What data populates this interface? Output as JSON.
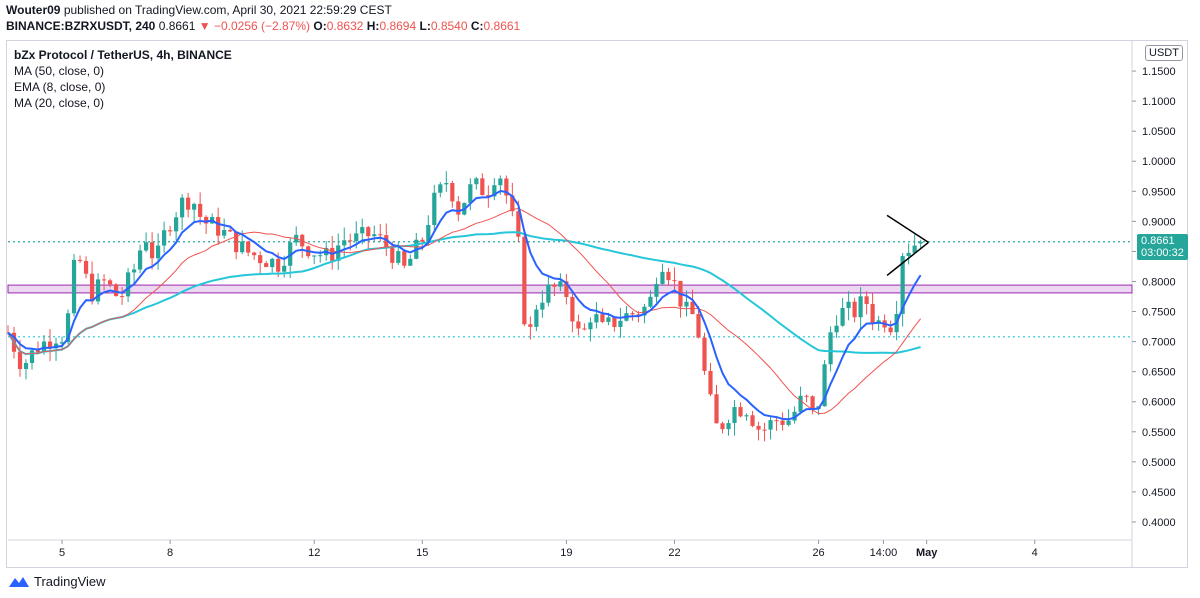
{
  "header": {
    "author": "Wouter09",
    "published": "published on TradingView.com, April 30, 2021 22:59:29 CEST",
    "symbol": "BINANCE:BZRXUSDT, 240",
    "price": "0.8661",
    "change": "▼ −0.0256 (−2.87%)",
    "o_label": "O:",
    "o_value": "0.8632",
    "h_label": "H:",
    "h_value": "0.8694",
    "l_label": "L:",
    "l_value": "0.8540",
    "c_label": "C:",
    "c_value": "0.8661"
  },
  "legend": {
    "title": "bZx Protocol / TetherUS, 4h, BINANCE",
    "ma50": "MA (50, close, 0)",
    "ema8": "EMA (8, close, 0)",
    "ma20": "MA (20, close, 0)"
  },
  "price_tag": {
    "price": "0.8661",
    "countdown": "03:00:32"
  },
  "currency": "USDT",
  "footer": {
    "brand": "TradingView"
  },
  "colors": {
    "up": "#26a69a",
    "down": "#ef5350",
    "ma50": "#26c6da",
    "ema8": "#2962ff",
    "ma20": "#ef5350",
    "zone": "#9c27b0",
    "tag": "#26a69a"
  },
  "chart_data": {
    "type": "candlestick",
    "title": "bZx Protocol / TetherUS, 4h, BINANCE",
    "ylim": [
      0.37,
      1.2
    ],
    "y_ticks": [
      "1.1500",
      "1.1000",
      "1.0500",
      "1.0000",
      "0.9500",
      "0.9000",
      "0.8500",
      "0.8000",
      "0.7500",
      "0.7000",
      "0.6500",
      "0.6000",
      "0.5500",
      "0.5000",
      "0.4500",
      "0.4000"
    ],
    "x_ticks": [
      "5",
      "8",
      "12",
      "15",
      "19",
      "22",
      "26",
      "14:00",
      "May",
      "4"
    ],
    "x_tick_days": [
      5,
      8,
      12,
      15,
      19,
      22,
      26,
      27.8,
      29,
      32
    ],
    "x_start_day": 3.5,
    "x_end_day": 34.7,
    "last_day": 28.95,
    "candles_per_day": 6,
    "close_anchors": [
      [
        3.5,
        0.715
      ],
      [
        3.9,
        0.66
      ],
      [
        4.3,
        0.69
      ],
      [
        4.8,
        0.71
      ],
      [
        5.1,
        0.71
      ],
      [
        5.4,
        0.85
      ],
      [
        5.8,
        0.78
      ],
      [
        6.2,
        0.8
      ],
      [
        6.6,
        0.77
      ],
      [
        7.0,
        0.82
      ],
      [
        7.3,
        0.88
      ],
      [
        7.6,
        0.83
      ],
      [
        7.9,
        0.89
      ],
      [
        8.3,
        0.93
      ],
      [
        8.6,
        0.94
      ],
      [
        8.9,
        0.9
      ],
      [
        9.3,
        0.89
      ],
      [
        9.7,
        0.87
      ],
      [
        10.1,
        0.85
      ],
      [
        10.5,
        0.84
      ],
      [
        11.0,
        0.83
      ],
      [
        11.5,
        0.87
      ],
      [
        12.0,
        0.85
      ],
      [
        12.4,
        0.84
      ],
      [
        12.8,
        0.87
      ],
      [
        13.2,
        0.87
      ],
      [
        13.6,
        0.88
      ],
      [
        14.0,
        0.86
      ],
      [
        14.5,
        0.82
      ],
      [
        15.0,
        0.87
      ],
      [
        15.3,
        0.93
      ],
      [
        15.7,
        0.97
      ],
      [
        16.0,
        0.92
      ],
      [
        16.4,
        0.96
      ],
      [
        16.8,
        0.95
      ],
      [
        17.1,
        0.99
      ],
      [
        17.4,
        0.93
      ],
      [
        17.7,
        0.85
      ],
      [
        17.9,
        0.69
      ],
      [
        18.2,
        0.77
      ],
      [
        18.6,
        0.79
      ],
      [
        19.0,
        0.78
      ],
      [
        19.4,
        0.7
      ],
      [
        19.7,
        0.75
      ],
      [
        20.0,
        0.72
      ],
      [
        20.5,
        0.74
      ],
      [
        21.0,
        0.75
      ],
      [
        21.3,
        0.76
      ],
      [
        21.6,
        0.84
      ],
      [
        21.9,
        0.81
      ],
      [
        22.3,
        0.75
      ],
      [
        22.6,
        0.74
      ],
      [
        22.9,
        0.62
      ],
      [
        23.2,
        0.55
      ],
      [
        23.6,
        0.59
      ],
      [
        24.0,
        0.59
      ],
      [
        24.4,
        0.55
      ],
      [
        24.8,
        0.57
      ],
      [
        25.2,
        0.57
      ],
      [
        25.6,
        0.61
      ],
      [
        25.9,
        0.57
      ],
      [
        26.1,
        0.63
      ],
      [
        26.4,
        0.74
      ],
      [
        26.7,
        0.75
      ],
      [
        27.0,
        0.75
      ],
      [
        27.3,
        0.77
      ],
      [
        27.6,
        0.73
      ],
      [
        27.9,
        0.74
      ],
      [
        28.1,
        0.72
      ],
      [
        28.3,
        0.85
      ],
      [
        28.6,
        0.86
      ],
      [
        28.8,
        0.87
      ],
      [
        28.95,
        0.8661
      ]
    ],
    "horizontal_lines": [
      {
        "y": 0.8661,
        "style": "dotted",
        "color": "#26a69a"
      },
      {
        "y": 0.708,
        "style": "dotted",
        "color": "#26c6da"
      }
    ],
    "zone": [
      0.781,
      0.794
    ],
    "pennant": {
      "upper": [
        [
          27.9,
          0.91
        ],
        [
          29.05,
          0.865
        ]
      ],
      "lower": [
        [
          27.9,
          0.81
        ],
        [
          29.05,
          0.865
        ]
      ],
      "tip_day": 29.05
    }
  }
}
